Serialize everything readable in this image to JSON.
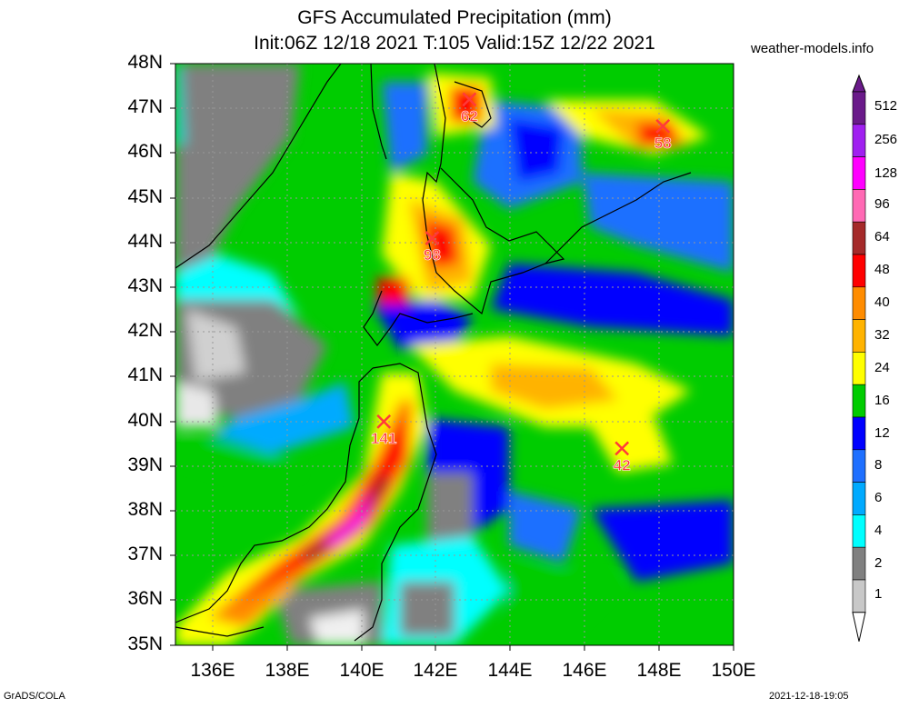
{
  "header": {
    "title": "GFS Accumulated Precipitation (mm)",
    "subtitle": "Init:06Z 12/18 2021 T:105 Valid:15Z 12/22 2021",
    "site": "weather-models.info"
  },
  "axes": {
    "lat_labels": [
      "48N",
      "47N",
      "46N",
      "45N",
      "44N",
      "43N",
      "42N",
      "41N",
      "40N",
      "39N",
      "38N",
      "37N",
      "36N",
      "35N"
    ],
    "lon_labels": [
      "136E",
      "138E",
      "140E",
      "142E",
      "144E",
      "146E",
      "148E",
      "150E"
    ],
    "lon_range": [
      135,
      150
    ],
    "lat_range": [
      35,
      48
    ]
  },
  "colorbar": {
    "levels": [
      "512",
      "256",
      "128",
      "96",
      "64",
      "48",
      "40",
      "32",
      "24",
      "16",
      "12",
      "8",
      "6",
      "4",
      "2",
      "1"
    ],
    "colors": [
      "#6a1a8a",
      "#a020f0",
      "#ff00ff",
      "#ff69b4",
      "#a52a2a",
      "#ff0000",
      "#ff8c00",
      "#ffb300",
      "#ffff00",
      "#00cc00",
      "#0000ff",
      "#1e6fff",
      "#00aaff",
      "#00ffff",
      "#808080",
      "#c8c8c8"
    ]
  },
  "max_markers": [
    {
      "label": "62",
      "lon": 142.9,
      "lat": 47.2
    },
    {
      "label": "58",
      "lon": 148.1,
      "lat": 46.6
    },
    {
      "label": "98",
      "lon": 141.9,
      "lat": 44.1
    },
    {
      "label": "141",
      "lon": 140.6,
      "lat": 40.0
    },
    {
      "label": "42",
      "lon": 147.0,
      "lat": 39.4
    }
  ],
  "footer": {
    "left": "GrADS/COLA",
    "right": "2021-12-18-19:05"
  }
}
